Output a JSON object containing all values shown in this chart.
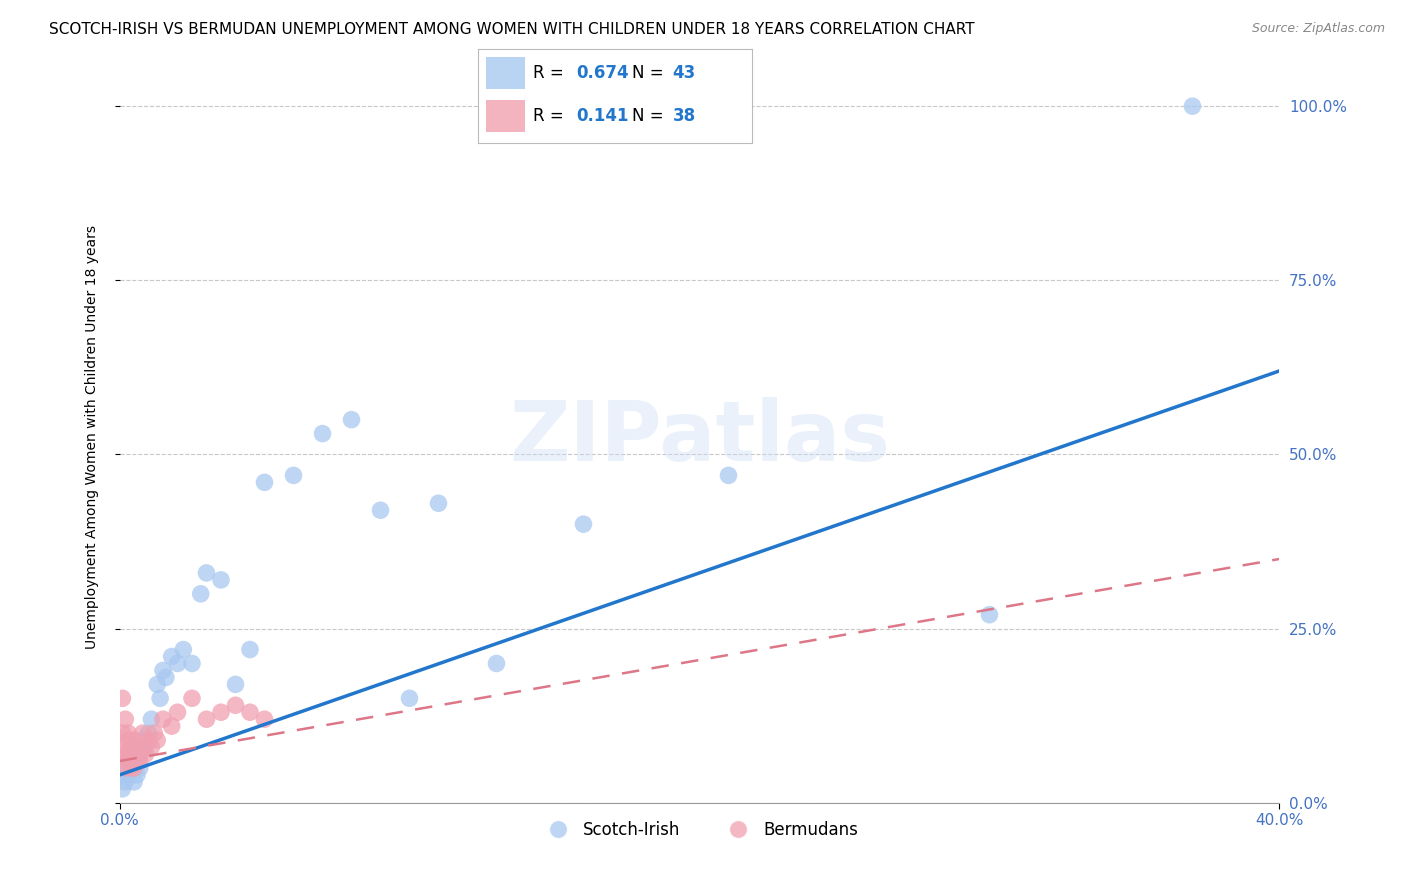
{
  "title": "SCOTCH-IRISH VS BERMUDAN UNEMPLOYMENT AMONG WOMEN WITH CHILDREN UNDER 18 YEARS CORRELATION CHART",
  "source": "Source: ZipAtlas.com",
  "ylabel": "Unemployment Among Women with Children Under 18 years",
  "background_color": "#ffffff",
  "grid_color": "#c8c8c8",
  "scotch_irish_R": 0.674,
  "scotch_irish_N": 43,
  "bermudan_R": 0.141,
  "bermudan_N": 38,
  "scotch_irish_color": "#a8c8f0",
  "bermudan_color": "#f0a0b0",
  "trend_blue": "#2277cc",
  "trend_pink": "#dd7788",
  "xlim": [
    0.0,
    0.4
  ],
  "ylim": [
    0.0,
    1.05
  ],
  "xtick_positions": [
    0.0,
    0.4
  ],
  "xtick_labels": [
    "0.0%",
    "40.0%"
  ],
  "yticks": [
    0.0,
    0.25,
    0.5,
    0.75,
    1.0
  ],
  "scotch_irish_x": [
    0.001,
    0.001,
    0.002,
    0.002,
    0.003,
    0.003,
    0.004,
    0.004,
    0.005,
    0.005,
    0.006,
    0.006,
    0.007,
    0.007,
    0.008,
    0.009,
    0.01,
    0.011,
    0.013,
    0.014,
    0.015,
    0.016,
    0.018,
    0.02,
    0.022,
    0.025,
    0.028,
    0.03,
    0.035,
    0.04,
    0.045,
    0.05,
    0.06,
    0.07,
    0.08,
    0.09,
    0.1,
    0.11,
    0.13,
    0.16,
    0.21,
    0.3,
    0.37
  ],
  "scotch_irish_y": [
    0.04,
    0.02,
    0.05,
    0.03,
    0.04,
    0.06,
    0.05,
    0.07,
    0.03,
    0.08,
    0.06,
    0.04,
    0.07,
    0.05,
    0.09,
    0.08,
    0.1,
    0.12,
    0.17,
    0.15,
    0.19,
    0.18,
    0.21,
    0.2,
    0.22,
    0.2,
    0.3,
    0.33,
    0.32,
    0.17,
    0.22,
    0.46,
    0.47,
    0.53,
    0.55,
    0.42,
    0.15,
    0.43,
    0.2,
    0.4,
    0.47,
    0.27,
    1.0
  ],
  "bermudan_x": [
    0.001,
    0.001,
    0.001,
    0.002,
    0.002,
    0.002,
    0.003,
    0.003,
    0.003,
    0.003,
    0.004,
    0.004,
    0.004,
    0.005,
    0.005,
    0.005,
    0.005,
    0.006,
    0.006,
    0.006,
    0.007,
    0.007,
    0.008,
    0.008,
    0.009,
    0.01,
    0.011,
    0.012,
    0.013,
    0.015,
    0.018,
    0.02,
    0.025,
    0.03,
    0.035,
    0.04,
    0.045,
    0.05
  ],
  "bermudan_y": [
    0.15,
    0.1,
    0.07,
    0.12,
    0.08,
    0.05,
    0.1,
    0.09,
    0.07,
    0.06,
    0.08,
    0.06,
    0.05,
    0.09,
    0.07,
    0.06,
    0.05,
    0.08,
    0.07,
    0.06,
    0.07,
    0.06,
    0.1,
    0.08,
    0.07,
    0.09,
    0.08,
    0.1,
    0.09,
    0.12,
    0.11,
    0.13,
    0.15,
    0.12,
    0.13,
    0.14,
    0.13,
    0.12
  ],
  "trend_si_x0": 0.0,
  "trend_si_y0": 0.04,
  "trend_si_x1": 0.4,
  "trend_si_y1": 0.62,
  "trend_bm_x0": 0.0,
  "trend_bm_y0": 0.06,
  "trend_bm_x1": 0.4,
  "trend_bm_y1": 0.35,
  "title_fontsize": 11,
  "axis_label_fontsize": 10,
  "tick_fontsize": 11,
  "legend_fontsize": 12
}
